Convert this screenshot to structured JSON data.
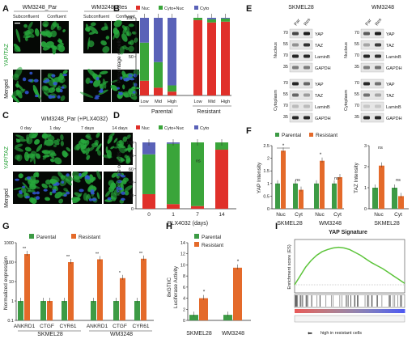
{
  "colors": {
    "nuc": "#e0302a",
    "cyto_nuc": "#3aa53a",
    "cyto": "#5a62b8",
    "parental": "#3d9b45",
    "resistant": "#e46a2a",
    "cell_green": "#27a83c",
    "nuclear_blue": "#3358d8",
    "gsea_line": "#5cc43a"
  },
  "panels": {
    "A": "A",
    "B": "B",
    "C": "C",
    "D": "D",
    "E": "E",
    "F": "F",
    "G": "G",
    "H": "H",
    "I": "I"
  },
  "panelA": {
    "group1": "WM3248_Par",
    "group2": "WM3248_Res",
    "cols": [
      "Subconfluent",
      "Confluent",
      "Subconfluent",
      "Confluent"
    ],
    "rows": [
      "YAP/TAZ",
      "Merged"
    ]
  },
  "panelC": {
    "title": "WM3248_Par (+PLX4032)",
    "cols": [
      "0 day",
      "1 day",
      "7 days",
      "14 days"
    ],
    "rows": [
      "YAP/TAZ",
      "Merged"
    ]
  },
  "panelB": {
    "legend": [
      "Nuc",
      "Cyto+Nuc",
      "Cyto"
    ],
    "ylabel": "Percentage of cells",
    "groups": [
      "Parental",
      "Resistant"
    ]
  },
  "panelD": {
    "legend": [
      "Nuc",
      "Cyto+Nuc",
      "Cyto"
    ],
    "ylabel": "Percentage of cells",
    "xlabel": "PLX4032 (days)",
    "ns": "ns"
  },
  "panelE": {
    "left_title": "SKMEL28",
    "right_title": "WM3248",
    "lanes": [
      "Par",
      "Res"
    ],
    "proteins": [
      "YAP",
      "TAZ",
      "LaminB",
      "GAPDH"
    ],
    "fractions": [
      "Nucleus",
      "Cytoplasm"
    ]
  },
  "panelF": {
    "legend": [
      "Parental",
      "Resistant"
    ],
    "ylabel1": "YAP Intensity",
    "ylabel2": "TAZ Intensity",
    "sig": "*",
    "ns": "ns",
    "cell1": "SKMEL28",
    "cell2": "WM3248",
    "cell3": "SKMEL28",
    "cats": [
      "Nuc",
      "Cyt"
    ]
  },
  "panelG": {
    "legend": [
      "Parental",
      "Resistant"
    ],
    "ylabel": "Normalized expression",
    "genes": [
      "ANKRD1",
      "CTGF",
      "CYR61"
    ],
    "cells": [
      "SKMEL28",
      "WM3248"
    ],
    "sig2": "**",
    "sig1": "*"
  },
  "panelH": {
    "legend": [
      "Parental",
      "Resistant"
    ],
    "ylabel1": "8xGTIIC",
    "ylabel2": "Luciferase Activity",
    "sig": "*",
    "cells": [
      "SKMEL28",
      "WM3248"
    ]
  },
  "panelI": {
    "title": "YAP Signature",
    "footer": "high in resistant cells",
    "ylabel": "Enrichment score (ES)"
  },
  "chart_data": [
    {
      "id": "B",
      "type": "bar",
      "stacked": true,
      "categories": [
        "Low",
        "Mid",
        "High",
        "Low",
        "Mid",
        "High"
      ],
      "series": [
        {
          "name": "Nuc",
          "values": [
            19,
            10,
            5,
            97,
            94,
            95
          ]
        },
        {
          "name": "Cyto+Nuc",
          "values": [
            49,
            33,
            8,
            3,
            4,
            4
          ]
        },
        {
          "name": "Cyto",
          "values": [
            32,
            57,
            87,
            0,
            2,
            1
          ]
        }
      ],
      "ylabel": "Percentage of cells",
      "ylim": [
        0,
        100
      ],
      "yticks": [
        0,
        50,
        100
      ]
    },
    {
      "id": "D",
      "type": "bar",
      "stacked": true,
      "categories": [
        "0",
        "1",
        "7",
        "14"
      ],
      "series": [
        {
          "name": "Nuc",
          "values": [
            22,
            7,
            4,
            89
          ]
        },
        {
          "name": "Cyto+Nuc",
          "values": [
            60,
            91,
            96,
            11
          ]
        },
        {
          "name": "Cyto",
          "values": [
            18,
            2,
            0,
            0
          ]
        }
      ],
      "ylabel": "Percentage of cells",
      "xlabel": "PLX4032 (days)",
      "ylim": [
        0,
        100
      ],
      "yticks": [
        0,
        20,
        40,
        60,
        80,
        100
      ]
    },
    {
      "id": "F1",
      "type": "bar",
      "categories": [
        "Nuc",
        "Cyt",
        "Nuc",
        "Cyt"
      ],
      "series": [
        {
          "name": "Parental",
          "values": [
            1,
            1,
            1,
            1
          ]
        },
        {
          "name": "Resistant",
          "values": [
            2.3,
            0.75,
            1.9,
            1.25
          ]
        }
      ],
      "ylabel": "YAP Intensity",
      "ylim": [
        0,
        2.5
      ],
      "yticks": [
        0,
        0.5,
        1,
        1.5,
        2,
        2.5
      ]
    },
    {
      "id": "F2",
      "type": "bar",
      "categories": [
        "Nuc",
        "Cyt"
      ],
      "series": [
        {
          "name": "Parental",
          "values": [
            1,
            1
          ]
        },
        {
          "name": "Resistant",
          "values": [
            2.05,
            0.6
          ]
        }
      ],
      "ylabel": "TAZ Intensity",
      "ylim": [
        0,
        3
      ],
      "yticks": [
        0,
        1,
        2,
        3
      ]
    },
    {
      "id": "G",
      "type": "bar",
      "log": true,
      "categories": [
        "ANKRD1",
        "CTGF",
        "CYR61",
        "ANKRD1",
        "CTGF",
        "CYR61"
      ],
      "series": [
        {
          "name": "Parental",
          "values": [
            1,
            1,
            1,
            1,
            1,
            1
          ]
        },
        {
          "name": "Resistant",
          "values": [
            260,
            1,
            100,
            140,
            15,
            150
          ]
        }
      ],
      "ylabel": "Normalized expression",
      "ylim": [
        0.1,
        1000
      ],
      "yticks": [
        0.1,
        1,
        10,
        100,
        1000
      ]
    },
    {
      "id": "H",
      "type": "bar",
      "categories": [
        "SKMEL28",
        "WM3248"
      ],
      "series": [
        {
          "name": "Parental",
          "values": [
            1,
            1
          ]
        },
        {
          "name": "Resistant",
          "values": [
            4,
            9.5
          ]
        }
      ],
      "ylabel": "8xGTIIC Luciferase Activity",
      "ylim": [
        0,
        14
      ],
      "yticks": [
        0,
        2,
        4,
        6,
        8,
        10,
        12,
        14
      ]
    },
    {
      "id": "I",
      "type": "line",
      "title": "YAP Signature",
      "x": [
        0,
        0.05,
        0.1,
        0.15,
        0.2,
        0.25,
        0.3,
        0.35,
        0.4,
        0.45,
        0.5,
        0.55,
        0.6,
        0.65,
        0.7,
        0.75,
        0.8,
        0.85,
        0.9,
        0.95,
        1
      ],
      "y": [
        0,
        0.12,
        0.24,
        0.33,
        0.4,
        0.45,
        0.48,
        0.5,
        0.51,
        0.5,
        0.48,
        0.44,
        0.4,
        0.35,
        0.3,
        0.26,
        0.22,
        0.17,
        0.12,
        0.07,
        0.02
      ]
    }
  ]
}
